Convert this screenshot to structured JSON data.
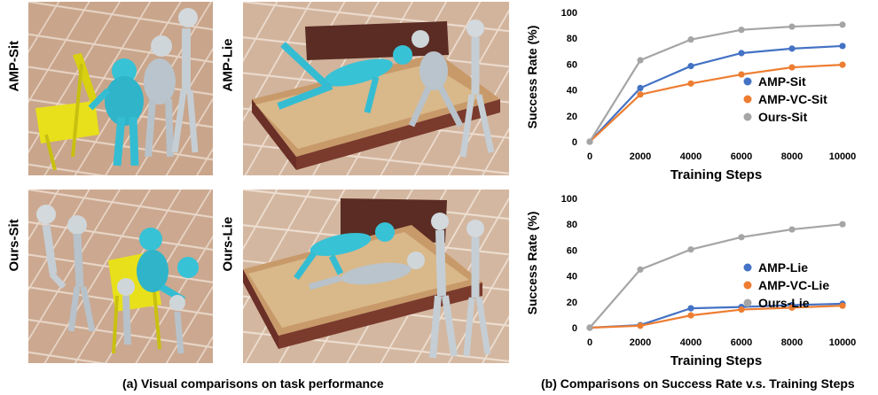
{
  "panel_a": {
    "caption": "(a) Visual comparisons on task performance",
    "scenes": [
      {
        "label": "AMP-Sit"
      },
      {
        "label": "AMP-Lie"
      },
      {
        "label": "Ours-Sit"
      },
      {
        "label": "Ours-Lie"
      }
    ]
  },
  "panel_b": {
    "caption": "(b) Comparisons on Success Rate v.s. Training Steps"
  },
  "colors": {
    "blue": "#4472C4",
    "orange": "#ED7D31",
    "gray": "#A5A5A5"
  },
  "chart_data": [
    {
      "type": "line",
      "xlabel": "Training Steps",
      "ylabel": "Success Rate (%)",
      "x": [
        0,
        2000,
        4000,
        6000,
        8000,
        10000
      ],
      "ylim": [
        0,
        100
      ],
      "yticks": [
        0,
        20,
        40,
        60,
        80,
        100
      ],
      "grid": false,
      "legend": "bottom-right",
      "series": [
        {
          "name": "AMP-Sit",
          "color": "#4472C4",
          "values": [
            0,
            41.5,
            58.5,
            68.5,
            72,
            74
          ]
        },
        {
          "name": "AMP-VC-Sit",
          "color": "#ED7D31",
          "values": [
            0,
            36.5,
            45,
            52,
            57.5,
            59.5
          ]
        },
        {
          "name": "Ours-Sit",
          "color": "#A5A5A5",
          "values": [
            0,
            63,
            79,
            86.5,
            89,
            90.5
          ]
        }
      ]
    },
    {
      "type": "line",
      "xlabel": "Training Steps",
      "ylabel": "Success Rate (%)",
      "x": [
        0,
        2000,
        4000,
        6000,
        8000,
        10000
      ],
      "ylim": [
        0,
        100
      ],
      "yticks": [
        0,
        20,
        40,
        60,
        80,
        100
      ],
      "grid": false,
      "legend": "bottom-right",
      "series": [
        {
          "name": "AMP-Lie",
          "color": "#4472C4",
          "values": [
            0,
            2,
            15,
            16,
            17.5,
            18.5
          ]
        },
        {
          "name": "AMP-VC-Lie",
          "color": "#ED7D31",
          "values": [
            0,
            1.5,
            9.5,
            14,
            15.5,
            17
          ]
        },
        {
          "name": "Ours-Lie",
          "color": "#A5A5A5",
          "values": [
            0,
            45,
            60.5,
            70,
            76,
            80
          ]
        }
      ]
    }
  ]
}
